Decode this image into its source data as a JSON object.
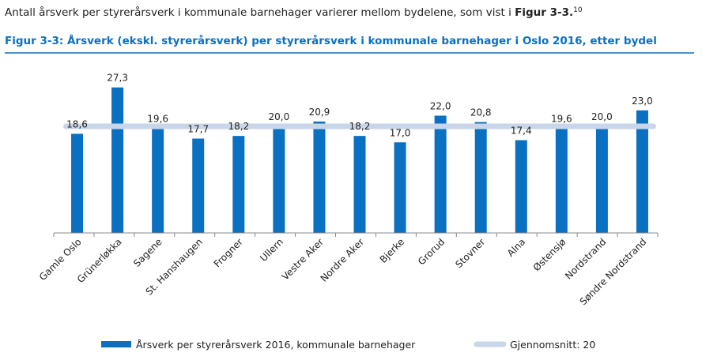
{
  "intro": {
    "text": "Antall årsverk per styrerårsverk i kommunale barnehager varierer mellom bydelene, som vist i ",
    "ref": "Figur 3-3.",
    "footnote": "10"
  },
  "chart_data": {
    "type": "bar",
    "title": "Figur 3-3: Årsverk (ekskl. styrerårsverk) per styrerårsverk i kommunale barnehager i Oslo 2016, etter bydel",
    "categories": [
      "Gamle Oslo",
      "Grünerløkka",
      "Sagene",
      "St. Hanshaugen",
      "Frogner",
      "Ullern",
      "Vestre Aker",
      "Nordre Aker",
      "Bjerke",
      "Grorud",
      "Stovner",
      "Alna",
      "Østensjø",
      "Nordstrand",
      "Søndre Nordstrand"
    ],
    "series": [
      {
        "name": "Årsverk per styrerårsverk 2016, kommunale barnehager",
        "color": "#0a70c2",
        "values": [
          18.6,
          27.3,
          19.6,
          17.7,
          18.2,
          20.0,
          20.9,
          18.2,
          17.0,
          22.0,
          20.8,
          17.4,
          19.6,
          20.0,
          23.0
        ],
        "value_labels": [
          "18,6",
          "27,3",
          "19,6",
          "17,7",
          "18,2",
          "20,0",
          "20,9",
          "18,2",
          "17,0",
          "22,0",
          "20,8",
          "17,4",
          "19,6",
          "20,0",
          "23,0"
        ]
      }
    ],
    "average": {
      "name": "Gjennomsnitt: 20",
      "value": 20,
      "color": "#c9d5e8"
    },
    "ylim": [
      0,
      28
    ]
  }
}
